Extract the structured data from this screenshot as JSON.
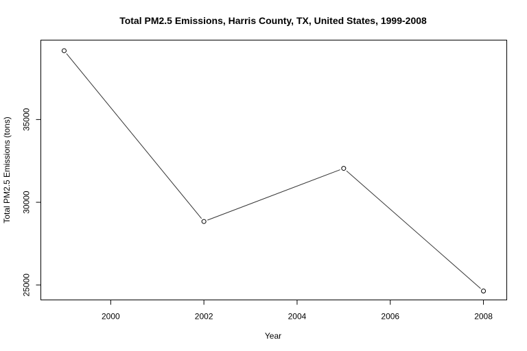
{
  "chart_data": {
    "type": "line",
    "title": "Total PM2.5 Emissions, Harris County, TX, United States, 1999-2008",
    "xlabel": "Year",
    "ylabel": "Total PM2.5 Emissions (tons)",
    "x": [
      1999,
      2002,
      2005,
      2008
    ],
    "series": [
      {
        "values": [
          39160,
          28840,
          32050,
          24640
        ]
      }
    ],
    "xlim": [
      1998.5,
      2008.5
    ],
    "ylim": [
      24100,
      39800
    ],
    "xticks": [
      "2000",
      "2002",
      "2004",
      "2006",
      "2008"
    ],
    "yticks": [
      "25000",
      "30000",
      "35000"
    ],
    "grid": false,
    "markers": "open-circle",
    "line_color": "#333333"
  }
}
